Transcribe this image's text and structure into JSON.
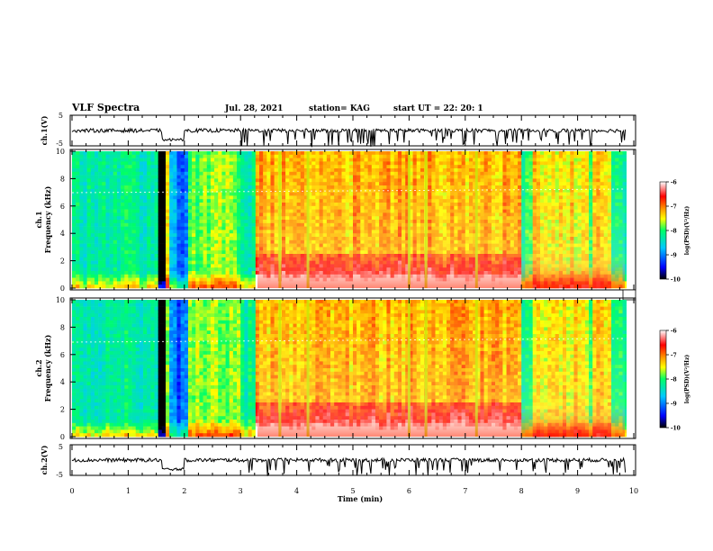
{
  "header": {
    "title": "VLF Spectra",
    "date": "Jul. 28, 2021",
    "station": "station= KAG",
    "start": "start UT = 22: 20: 1"
  },
  "axes": {
    "xlabel": "Time (min)",
    "ch1_voltage_label": "ch.1(V)",
    "ch2_voltage_label": "ch.2(V)",
    "ch1_spec_label": "ch.1",
    "ch2_spec_label": "ch.2",
    "freq_label": "Frequency (kHz)",
    "colorbar_label": "log(PSD)(V²/Hz)"
  },
  "colors": {
    "colormap": [
      "#000000",
      "#0000ff",
      "#00c8ff",
      "#00ff66",
      "#ffff00",
      "#ff9900",
      "#ff0000",
      "#ffffff"
    ]
  },
  "chart_data": {
    "type": "heatmap",
    "x_range": [
      0,
      10
    ],
    "x_ticks": [
      "0",
      "1",
      "2",
      "3",
      "4",
      "5",
      "6",
      "7",
      "8",
      "9",
      "10"
    ],
    "voltage_panels": [
      {
        "channel": "ch.1(V)",
        "ylim": [
          -5,
          5
        ],
        "y_ticks": [
          "5",
          "-5"
        ],
        "baseline_v": 0,
        "step_down": {
          "from_min": 1.6,
          "to_min": 2.0,
          "level_v": -3
        },
        "dips_min": [
          2.95,
          3.25,
          3.6,
          3.9,
          4.1,
          4.4,
          4.9,
          5.2,
          5.8,
          6.05,
          6.3,
          6.6,
          7.0,
          7.4,
          7.8,
          8.1,
          8.4,
          8.8,
          9.2,
          9.5
        ]
      },
      {
        "channel": "ch.2(V)",
        "ylim": [
          -5,
          5
        ],
        "y_ticks": [
          "5",
          "-5"
        ],
        "baseline_v": 0,
        "step_down": {
          "from_min": 1.6,
          "to_min": 2.0,
          "level_v": -3
        },
        "dips_min": [
          2.95,
          3.25,
          3.6,
          3.9,
          4.1,
          4.4,
          4.9,
          5.2,
          5.8,
          6.05,
          6.3,
          6.6,
          7.0,
          7.4,
          7.8,
          8.1,
          8.4,
          8.8,
          9.2,
          9.5
        ]
      }
    ],
    "spectrogram_panels": [
      {
        "channel": "ch.1",
        "ylabel": "Frequency (kHz)",
        "ylim": [
          0,
          10
        ],
        "y_ticks": [
          "0",
          "2",
          "4",
          "6",
          "8",
          "10"
        ],
        "colorbar": {
          "range": [
            -10,
            -6
          ],
          "ticks": [
            "-6",
            "-7",
            "-8",
            "-9",
            "-10"
          ]
        },
        "segments": [
          {
            "t0": 0.0,
            "t1": 1.55,
            "level": -8.0
          },
          {
            "t0": 1.55,
            "t1": 1.65,
            "level": -10.5
          },
          {
            "t0": 1.65,
            "t1": 1.75,
            "level": -7.2
          },
          {
            "t0": 1.75,
            "t1": 1.85,
            "level": -8.6
          },
          {
            "t0": 1.85,
            "t1": 2.05,
            "level": -9.0
          },
          {
            "t0": 2.05,
            "t1": 3.0,
            "level": -7.5
          },
          {
            "t0": 3.0,
            "t1": 3.3,
            "level": -8.0
          },
          {
            "t0": 3.3,
            "t1": 8.0,
            "level": -6.8
          },
          {
            "t0": 8.0,
            "t1": 8.2,
            "level": -7.8
          },
          {
            "t0": 8.2,
            "t1": 9.2,
            "level": -7.0
          },
          {
            "t0": 9.2,
            "t1": 9.3,
            "level": -7.8
          },
          {
            "t0": 9.3,
            "t1": 9.6,
            "level": -7.0
          },
          {
            "t0": 9.6,
            "t1": 9.85,
            "level": -7.9
          }
        ],
        "vertical_lines_min": [
          3.7,
          4.2,
          6.0,
          6.3,
          7.2
        ]
      },
      {
        "channel": "ch.2",
        "ylabel": "Frequency (kHz)",
        "ylim": [
          0,
          10
        ],
        "y_ticks": [
          "0",
          "2",
          "4",
          "6",
          "8",
          "10"
        ],
        "colorbar": {
          "range": [
            -10,
            -6
          ],
          "ticks": [
            "-6",
            "-7",
            "-8",
            "-9",
            "-10"
          ]
        },
        "segments": [
          {
            "t0": 0.0,
            "t1": 1.55,
            "level": -8.0
          },
          {
            "t0": 1.55,
            "t1": 1.65,
            "level": -10.5
          },
          {
            "t0": 1.65,
            "t1": 1.75,
            "level": -7.2
          },
          {
            "t0": 1.75,
            "t1": 1.85,
            "level": -8.6
          },
          {
            "t0": 1.85,
            "t1": 2.05,
            "level": -9.0
          },
          {
            "t0": 2.05,
            "t1": 3.0,
            "level": -7.5
          },
          {
            "t0": 3.0,
            "t1": 3.3,
            "level": -8.0
          },
          {
            "t0": 3.3,
            "t1": 8.0,
            "level": -6.8
          },
          {
            "t0": 8.0,
            "t1": 8.2,
            "level": -7.8
          },
          {
            "t0": 8.2,
            "t1": 9.2,
            "level": -7.0
          },
          {
            "t0": 9.2,
            "t1": 9.3,
            "level": -7.8
          },
          {
            "t0": 9.3,
            "t1": 9.6,
            "level": -7.0
          },
          {
            "t0": 9.6,
            "t1": 9.85,
            "level": -7.9
          }
        ],
        "vertical_lines_min": [
          3.7,
          4.2,
          6.0,
          6.3,
          7.2
        ]
      }
    ]
  }
}
